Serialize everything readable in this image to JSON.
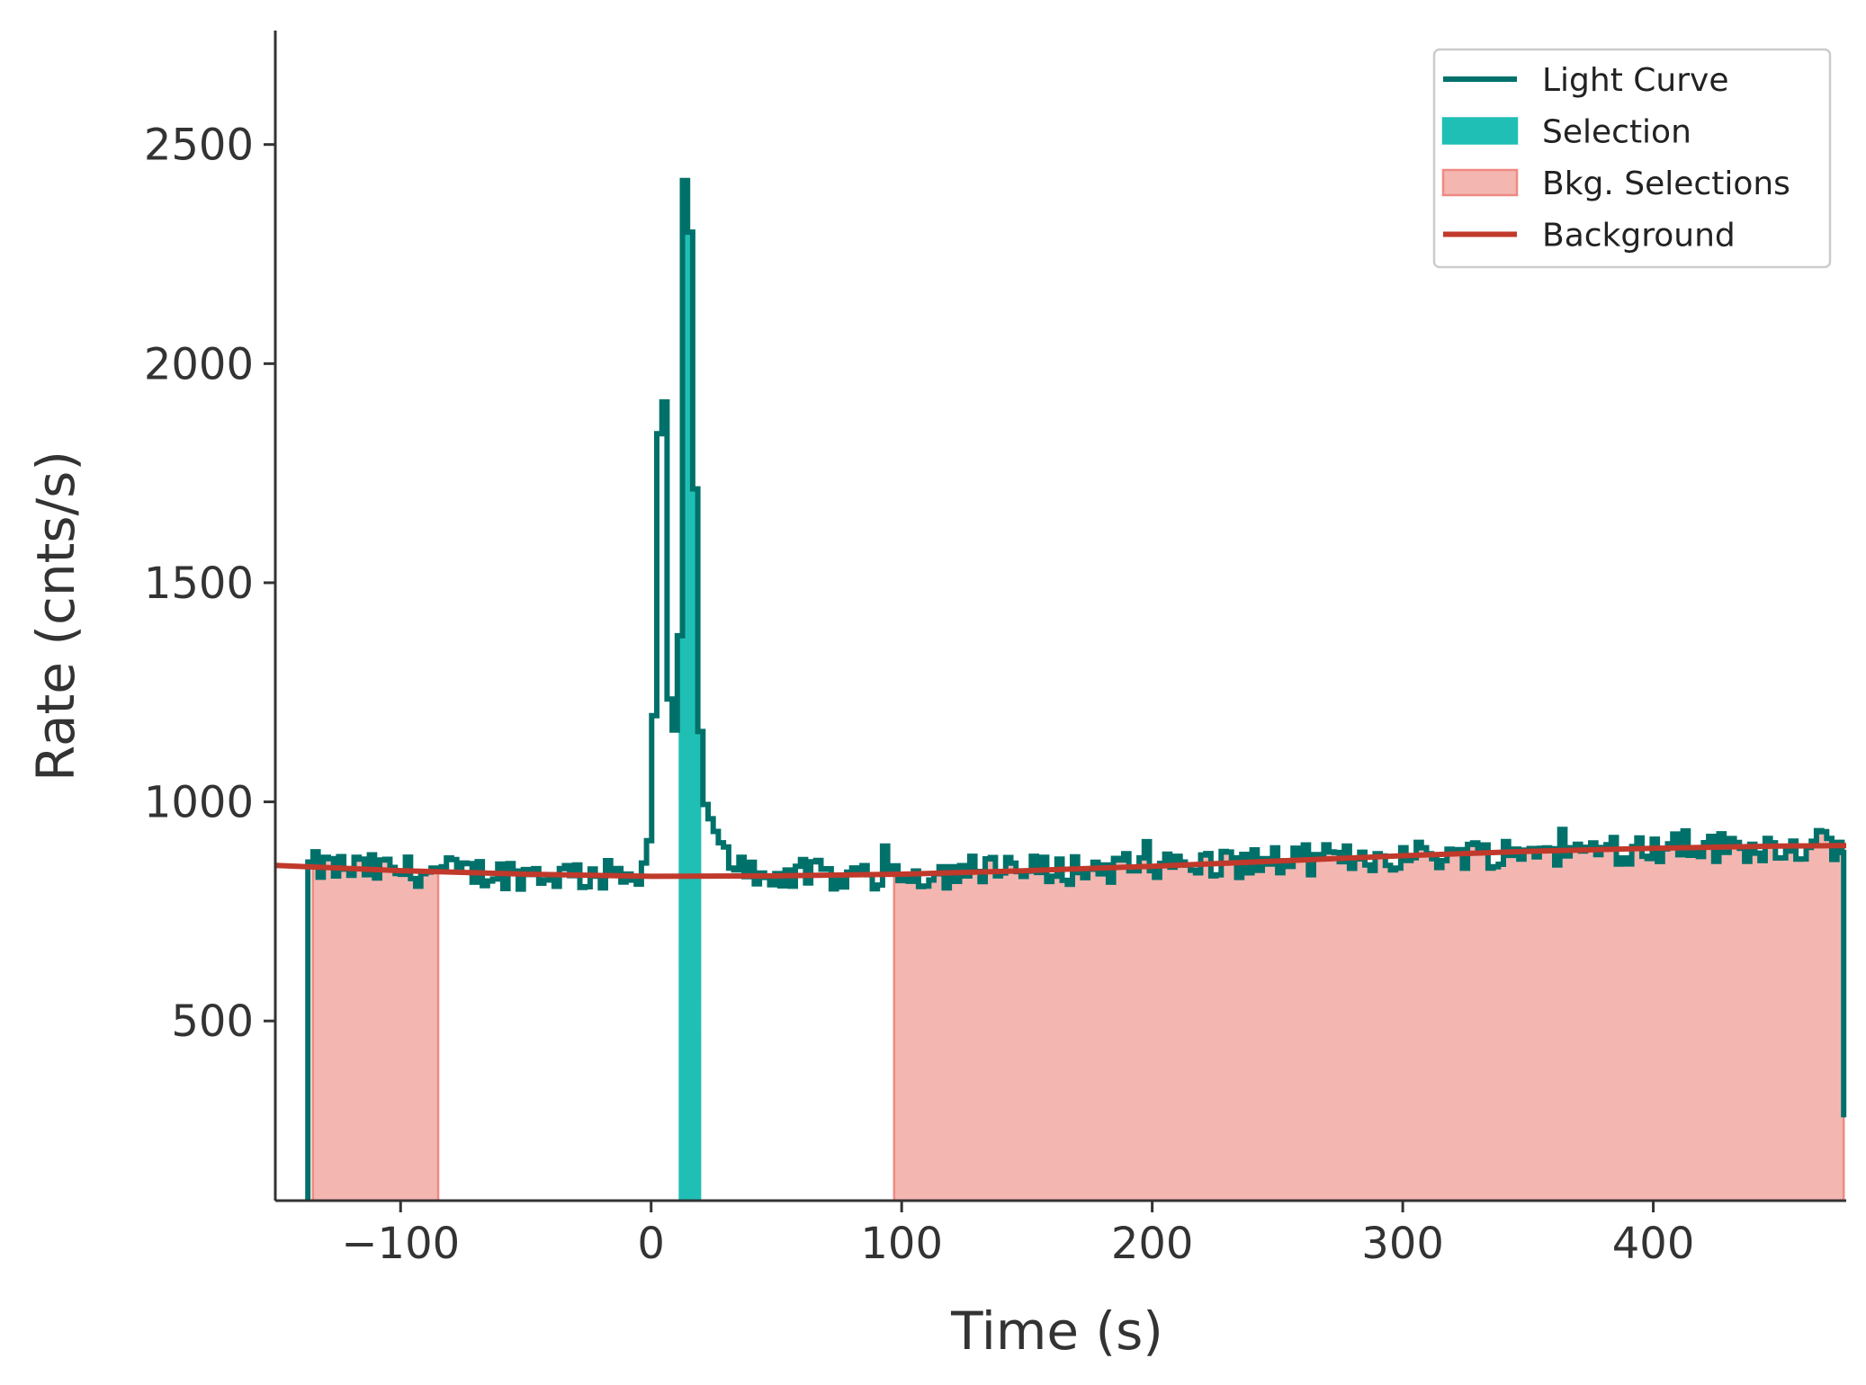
{
  "chart_data": {
    "type": "line",
    "title": "",
    "xlabel": "Time (s)",
    "ylabel": "Rate (cnts/s)",
    "xlim": [
      -150,
      477
    ],
    "ylim": [
      90,
      2760
    ],
    "xticks": [
      -100,
      0,
      100,
      200,
      300,
      400
    ],
    "xtick_labels": [
      "−100",
      "0",
      "100",
      "200",
      "300",
      "400"
    ],
    "yticks": [
      500,
      1000,
      1500,
      2000,
      2500
    ],
    "ytick_labels": [
      "500",
      "1000",
      "1500",
      "2000",
      "2500"
    ],
    "grid": false,
    "legend_position": "top-right",
    "colors": {
      "light_curve": "#00716a",
      "selection": "#20bfb5",
      "bkg_fill": "#f4b6b1",
      "bkg_edge": "#ef8a82",
      "background": "#c0392b",
      "axis": "#333333"
    },
    "legend": [
      {
        "label": "Light Curve",
        "kind": "line",
        "color": "#00716a"
      },
      {
        "label": "Selection",
        "kind": "patch",
        "color": "#20bfb5"
      },
      {
        "label": "Bkg. Selections",
        "kind": "patch",
        "color": "#f4b6b1",
        "edge": "#ef8a82"
      },
      {
        "label": "Background",
        "kind": "line",
        "color": "#c0392b"
      }
    ],
    "selection": [
      11,
      20
    ],
    "bkg_selections": [
      [
        -135,
        -85
      ],
      [
        97,
        476
      ]
    ],
    "background_model": {
      "x": [
        -150,
        -100,
        -50,
        0,
        50,
        100,
        150,
        200,
        250,
        300,
        350,
        400,
        450,
        477
      ],
      "y": [
        855,
        843,
        835,
        830,
        831,
        835,
        843,
        853,
        865,
        877,
        887,
        894,
        899,
        900
      ]
    },
    "light_curve": {
      "bin_width": 2.048,
      "x_start": -137,
      "x_end": 476,
      "start_rate": 90,
      "end_rate": 280,
      "baseline_noise": 35,
      "peaks": [
        {
          "t": 3,
          "rate": 1840
        },
        {
          "t": 14,
          "rate": 2300
        }
      ]
    }
  }
}
